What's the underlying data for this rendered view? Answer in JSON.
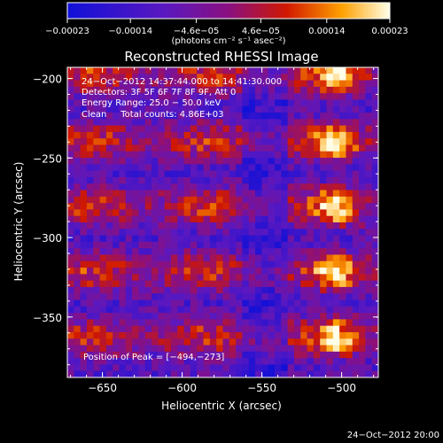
{
  "chart_data": {
    "type": "heatmap",
    "title": "Reconstructed RHESSI Image",
    "xlabel": "Heliocentric X (arcsec)",
    "ylabel": "Heliocentric Y (arcsec)",
    "xlim": [
      -672,
      -477
    ],
    "ylim": [
      -388,
      -193
    ],
    "x_ticks": [
      -650,
      -600,
      -550,
      -500
    ],
    "x_tick_labels": [
      "−650",
      "−600",
      "−550",
      "−500"
    ],
    "y_ticks": [
      -200,
      -250,
      -300,
      -350
    ],
    "y_tick_labels": [
      "−200",
      "−250",
      "−300",
      "−350"
    ],
    "colorbar": {
      "range": [
        -0.00023,
        0.00023
      ],
      "ticks": [
        -0.00023,
        -0.00014,
        -4.6e-05,
        4.6e-05,
        0.00014,
        0.00023
      ],
      "tick_labels": [
        "−0.00023",
        "−0.00014",
        "−4.6e−05",
        "4.6e−05",
        "0.00014",
        "0.00023"
      ],
      "unit_label": "(photons cm⁻² s⁻¹ asec⁻²)"
    },
    "annotations": [
      "24−Oct−2012 14:37:44.000 to 14:41:30.000",
      "Detectors: 3F 5F 6F 7F 8F 9F, Att 0",
      "Energy Range: 25.0 − 50.0 keV",
      "Clean     Total counts: 4.86E+03"
    ],
    "peak_label": "Position of Peak = [−494,−273]",
    "peak": [
      -494,
      -273
    ],
    "footer_timestamp": "24−Oct−2012 20:00",
    "grid": false,
    "grid_size": [
      48,
      48
    ]
  }
}
